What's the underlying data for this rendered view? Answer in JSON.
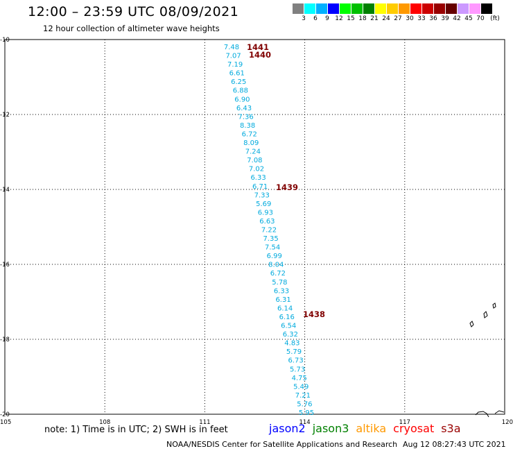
{
  "header": {
    "title": "12:00 – 23:59 UTC 08/09/2021",
    "subtitle": "12 hour collection of altimeter wave heights"
  },
  "legend": {
    "colors": [
      "#808080",
      "#00ffff",
      "#00b0ff",
      "#0000ff",
      "#00ff00",
      "#00c000",
      "#008000",
      "#ffff00",
      "#ffcc00",
      "#ff9900",
      "#ff0000",
      "#cc0000",
      "#990000",
      "#660000",
      "#cc99ff",
      "#ff99ff",
      "#000000"
    ],
    "labels": [
      "3",
      "6",
      "9",
      "12",
      "15",
      "18",
      "21",
      "24",
      "27",
      "30",
      "33",
      "36",
      "39",
      "42",
      "45",
      "70",
      "(ft)"
    ]
  },
  "map": {
    "lat_labels": [
      "-10",
      "-12",
      "-14",
      "-16",
      "-18",
      "-20"
    ],
    "lon_labels": [
      "105",
      "108",
      "111",
      "114",
      "117",
      "120"
    ],
    "lat_range": [
      -10,
      -20
    ],
    "lon_range": [
      105,
      120
    ],
    "grid": "dotted"
  },
  "track": {
    "wave_color": "#00aadd",
    "time_color": "#800000",
    "wave_heights": [
      "7.48",
      "7.07",
      "7.19",
      "6.61",
      "6.25",
      "6.88",
      "6.90",
      "6.43",
      "7.36",
      "8.38",
      "6.72",
      "8.09",
      "7.24",
      "7.08",
      "7.02",
      "6.33",
      "6.71",
      "7.33",
      "5.69",
      "6.93",
      "6.63",
      "7.22",
      "7.35",
      "7.54",
      "6.99",
      "8.04",
      "6.72",
      "5.78",
      "6.33",
      "6.31",
      "6.14",
      "6.16",
      "6.54",
      "6.32",
      "4.83",
      "5.79",
      "6.73",
      "5.73",
      "4.75",
      "5.49",
      "7.21",
      "5.76",
      "5.95"
    ],
    "times": [
      "1441",
      "1440",
      "1439",
      "1438"
    ]
  },
  "footer": {
    "note": "note:  1) Time is in UTC;  2) SWH is in feet",
    "satellites": [
      {
        "name": "jason2",
        "color": "#0000ff"
      },
      {
        "name": "jason3",
        "color": "#008000"
      },
      {
        "name": "altika",
        "color": "#ff9900"
      },
      {
        "name": "cryosat",
        "color": "#ff0000"
      },
      {
        "name": "s3a",
        "color": "#990000"
      }
    ],
    "credit": "NOAA/NESDIS Center for Satellite Applications and Research",
    "timestamp": "Aug 12 08:27:43 UTC 2021"
  }
}
